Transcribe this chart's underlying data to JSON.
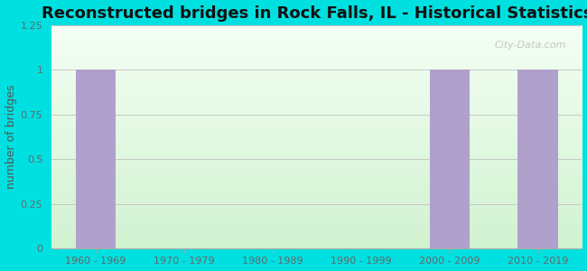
{
  "title": "Reconstructed bridges in Rock Falls, IL - Historical Statistics",
  "categories": [
    "1960 - 1969",
    "1970 - 1979",
    "1980 - 1989",
    "1990 - 1999",
    "2000 - 2009",
    "2010 - 2019"
  ],
  "values": [
    1,
    0,
    0,
    0,
    1,
    1
  ],
  "bar_color": "#b0a0cc",
  "ylabel": "number of bridges",
  "ylim": [
    0,
    1.25
  ],
  "ytick_values": [
    0,
    0.25,
    0.5,
    0.75,
    1,
    1.25
  ],
  "ytick_labels": [
    "0",
    "0.25",
    "0.5",
    "0.75",
    "1",
    "1.25"
  ],
  "background_outer": "#00e0e0",
  "background_plot_top": "#f0f8f0",
  "background_plot_bottom": "#d8f0d8",
  "grid_color": "#c8c8c8",
  "title_fontsize": 13,
  "axis_label_fontsize": 9,
  "tick_fontsize": 8,
  "watermark": "City-Data.com",
  "ylabel_color": "#555555",
  "tick_color": "#666666"
}
